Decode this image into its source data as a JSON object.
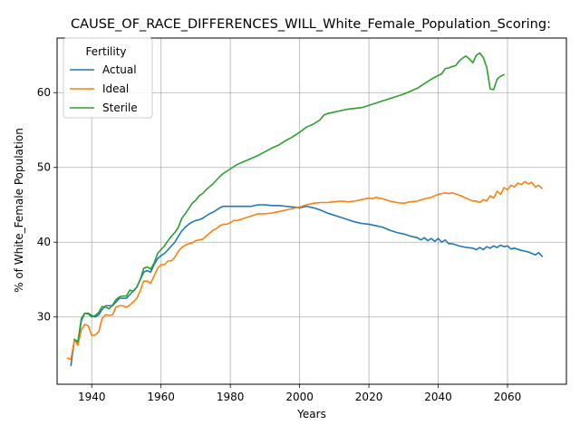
{
  "chart_data": {
    "type": "line",
    "title": "CAUSE_OF_RACE_DIFFERENCES_WILL_White_Female_Population_Scoring:",
    "xlabel": "Years",
    "ylabel": "% of White_Female Population",
    "xlim": [
      1930,
      2077
    ],
    "ylim": [
      21.0,
      67.3
    ],
    "xticks": [
      1940,
      1960,
      1980,
      2000,
      2020,
      2040,
      2060
    ],
    "yticks": [
      30,
      40,
      50,
      60
    ],
    "grid": true,
    "legend": {
      "title": "Fertility",
      "placement": "top-left",
      "entries": [
        "Actual",
        "Ideal",
        "Sterile"
      ]
    },
    "series": [
      {
        "name": "Actual",
        "color": "#1f77b4",
        "points": [
          [
            1934,
            23.5
          ],
          [
            1935,
            27.0
          ],
          [
            1936,
            26.5
          ],
          [
            1937,
            29.5
          ],
          [
            1938,
            30.5
          ],
          [
            1939,
            30.5
          ],
          [
            1940,
            30.2
          ],
          [
            1941,
            30.0
          ],
          [
            1942,
            30.3
          ],
          [
            1943,
            31.0
          ],
          [
            1944,
            31.5
          ],
          [
            1945,
            31.5
          ],
          [
            1946,
            31.5
          ],
          [
            1947,
            32.0
          ],
          [
            1948,
            32.5
          ],
          [
            1949,
            32.5
          ],
          [
            1950,
            32.5
          ],
          [
            1951,
            33.0
          ],
          [
            1952,
            33.5
          ],
          [
            1953,
            34.0
          ],
          [
            1954,
            35.0
          ],
          [
            1955,
            36.0
          ],
          [
            1956,
            36.2
          ],
          [
            1957,
            36.0
          ],
          [
            1958,
            37.0
          ],
          [
            1959,
            37.8
          ],
          [
            1960,
            38.2
          ],
          [
            1961,
            38.5
          ],
          [
            1962,
            39.0
          ],
          [
            1963,
            39.5
          ],
          [
            1964,
            40.0
          ],
          [
            1965,
            40.8
          ],
          [
            1966,
            41.5
          ],
          [
            1967,
            42.0
          ],
          [
            1968,
            42.4
          ],
          [
            1969,
            42.7
          ],
          [
            1970,
            42.9
          ],
          [
            1971,
            43.0
          ],
          [
            1972,
            43.2
          ],
          [
            1973,
            43.5
          ],
          [
            1974,
            43.8
          ],
          [
            1975,
            44.0
          ],
          [
            1976,
            44.3
          ],
          [
            1977,
            44.6
          ],
          [
            1978,
            44.8
          ],
          [
            1979,
            44.8
          ],
          [
            1980,
            44.8
          ],
          [
            1982,
            44.8
          ],
          [
            1984,
            44.8
          ],
          [
            1986,
            44.8
          ],
          [
            1988,
            45.0
          ],
          [
            1990,
            45.0
          ],
          [
            1992,
            44.9
          ],
          [
            1994,
            44.9
          ],
          [
            1996,
            44.8
          ],
          [
            1998,
            44.7
          ],
          [
            2000,
            44.6
          ],
          [
            2002,
            44.8
          ],
          [
            2004,
            44.6
          ],
          [
            2006,
            44.3
          ],
          [
            2008,
            43.9
          ],
          [
            2010,
            43.6
          ],
          [
            2012,
            43.3
          ],
          [
            2014,
            43.0
          ],
          [
            2016,
            42.7
          ],
          [
            2018,
            42.5
          ],
          [
            2020,
            42.4
          ],
          [
            2022,
            42.2
          ],
          [
            2024,
            42.0
          ],
          [
            2026,
            41.6
          ],
          [
            2028,
            41.3
          ],
          [
            2030,
            41.1
          ],
          [
            2032,
            40.8
          ],
          [
            2034,
            40.6
          ],
          [
            2035,
            40.3
          ],
          [
            2036,
            40.6
          ],
          [
            2037,
            40.2
          ],
          [
            2038,
            40.5
          ],
          [
            2039,
            40.1
          ],
          [
            2040,
            40.5
          ],
          [
            2041,
            40.0
          ],
          [
            2042,
            40.3
          ],
          [
            2043,
            39.8
          ],
          [
            2044,
            39.8
          ],
          [
            2046,
            39.5
          ],
          [
            2048,
            39.3
          ],
          [
            2050,
            39.2
          ],
          [
            2051,
            39.0
          ],
          [
            2052,
            39.3
          ],
          [
            2053,
            39.0
          ],
          [
            2054,
            39.4
          ],
          [
            2055,
            39.2
          ],
          [
            2056,
            39.5
          ],
          [
            2057,
            39.3
          ],
          [
            2058,
            39.6
          ],
          [
            2059,
            39.4
          ],
          [
            2060,
            39.5
          ],
          [
            2061,
            39.1
          ],
          [
            2062,
            39.2
          ],
          [
            2064,
            38.9
          ],
          [
            2066,
            38.7
          ],
          [
            2067,
            38.5
          ],
          [
            2068,
            38.3
          ],
          [
            2069,
            38.6
          ],
          [
            2070,
            38.1
          ]
        ]
      },
      {
        "name": "Ideal",
        "color": "#ff7f0e",
        "points": [
          [
            1933,
            24.5
          ],
          [
            1934,
            24.3
          ],
          [
            1935,
            27.0
          ],
          [
            1936,
            26.2
          ],
          [
            1937,
            28.3
          ],
          [
            1938,
            29.0
          ],
          [
            1939,
            28.8
          ],
          [
            1940,
            27.5
          ],
          [
            1941,
            27.6
          ],
          [
            1942,
            28.0
          ],
          [
            1943,
            29.8
          ],
          [
            1944,
            30.3
          ],
          [
            1945,
            30.2
          ],
          [
            1946,
            30.3
          ],
          [
            1947,
            31.3
          ],
          [
            1948,
            31.5
          ],
          [
            1949,
            31.5
          ],
          [
            1950,
            31.3
          ],
          [
            1951,
            31.6
          ],
          [
            1952,
            32.0
          ],
          [
            1953,
            32.5
          ],
          [
            1954,
            33.5
          ],
          [
            1955,
            34.8
          ],
          [
            1956,
            34.8
          ],
          [
            1957,
            34.5
          ],
          [
            1958,
            35.5
          ],
          [
            1959,
            36.5
          ],
          [
            1960,
            37.0
          ],
          [
            1961,
            37.0
          ],
          [
            1962,
            37.5
          ],
          [
            1963,
            37.5
          ],
          [
            1964,
            38.0
          ],
          [
            1965,
            38.8
          ],
          [
            1966,
            39.3
          ],
          [
            1967,
            39.6
          ],
          [
            1968,
            39.8
          ],
          [
            1969,
            39.9
          ],
          [
            1970,
            40.2
          ],
          [
            1971,
            40.3
          ],
          [
            1972,
            40.4
          ],
          [
            1973,
            40.8
          ],
          [
            1974,
            41.2
          ],
          [
            1975,
            41.6
          ],
          [
            1976,
            41.8
          ],
          [
            1977,
            42.2
          ],
          [
            1978,
            42.4
          ],
          [
            1979,
            42.4
          ],
          [
            1980,
            42.6
          ],
          [
            1981,
            42.9
          ],
          [
            1982,
            42.9
          ],
          [
            1984,
            43.2
          ],
          [
            1986,
            43.5
          ],
          [
            1988,
            43.8
          ],
          [
            1990,
            43.8
          ],
          [
            1992,
            43.9
          ],
          [
            1994,
            44.1
          ],
          [
            1996,
            44.3
          ],
          [
            1998,
            44.5
          ],
          [
            2000,
            44.7
          ],
          [
            2002,
            45.0
          ],
          [
            2004,
            45.2
          ],
          [
            2006,
            45.3
          ],
          [
            2008,
            45.3
          ],
          [
            2010,
            45.4
          ],
          [
            2012,
            45.5
          ],
          [
            2014,
            45.4
          ],
          [
            2016,
            45.5
          ],
          [
            2018,
            45.7
          ],
          [
            2020,
            45.9
          ],
          [
            2021,
            45.8
          ],
          [
            2022,
            46.0
          ],
          [
            2024,
            45.8
          ],
          [
            2026,
            45.5
          ],
          [
            2028,
            45.3
          ],
          [
            2030,
            45.2
          ],
          [
            2032,
            45.4
          ],
          [
            2034,
            45.5
          ],
          [
            2036,
            45.8
          ],
          [
            2038,
            46.0
          ],
          [
            2040,
            46.4
          ],
          [
            2041,
            46.5
          ],
          [
            2042,
            46.6
          ],
          [
            2043,
            46.5
          ],
          [
            2044,
            46.6
          ],
          [
            2046,
            46.3
          ],
          [
            2048,
            45.9
          ],
          [
            2050,
            45.5
          ],
          [
            2051,
            45.5
          ],
          [
            2052,
            45.3
          ],
          [
            2053,
            45.7
          ],
          [
            2054,
            45.5
          ],
          [
            2055,
            46.2
          ],
          [
            2056,
            45.9
          ],
          [
            2057,
            46.8
          ],
          [
            2058,
            46.4
          ],
          [
            2059,
            47.3
          ],
          [
            2060,
            47.0
          ],
          [
            2061,
            47.6
          ],
          [
            2062,
            47.4
          ],
          [
            2063,
            47.9
          ],
          [
            2064,
            47.7
          ],
          [
            2065,
            48.1
          ],
          [
            2066,
            47.8
          ],
          [
            2067,
            48.0
          ],
          [
            2068,
            47.4
          ],
          [
            2069,
            47.6
          ],
          [
            2070,
            47.2
          ]
        ]
      },
      {
        "name": "Sterile",
        "color": "#2ca02c",
        "points": [
          [
            1935,
            27.0
          ],
          [
            1936,
            26.7
          ],
          [
            1937,
            29.8
          ],
          [
            1938,
            30.5
          ],
          [
            1939,
            30.4
          ],
          [
            1940,
            30.0
          ],
          [
            1941,
            30.2
          ],
          [
            1942,
            30.6
          ],
          [
            1943,
            31.4
          ],
          [
            1944,
            31.3
          ],
          [
            1945,
            31.1
          ],
          [
            1946,
            31.6
          ],
          [
            1947,
            32.3
          ],
          [
            1948,
            32.7
          ],
          [
            1949,
            32.8
          ],
          [
            1950,
            32.8
          ],
          [
            1951,
            33.6
          ],
          [
            1952,
            33.4
          ],
          [
            1953,
            34.0
          ],
          [
            1954,
            35.0
          ],
          [
            1955,
            36.5
          ],
          [
            1956,
            36.7
          ],
          [
            1957,
            36.4
          ],
          [
            1958,
            37.2
          ],
          [
            1959,
            38.5
          ],
          [
            1960,
            39.0
          ],
          [
            1961,
            39.5
          ],
          [
            1962,
            40.2
          ],
          [
            1963,
            40.8
          ],
          [
            1964,
            41.3
          ],
          [
            1965,
            42.0
          ],
          [
            1966,
            43.2
          ],
          [
            1967,
            43.8
          ],
          [
            1968,
            44.5
          ],
          [
            1969,
            45.2
          ],
          [
            1970,
            45.6
          ],
          [
            1971,
            46.2
          ],
          [
            1972,
            46.5
          ],
          [
            1973,
            47.0
          ],
          [
            1974,
            47.4
          ],
          [
            1975,
            47.8
          ],
          [
            1976,
            48.3
          ],
          [
            1977,
            48.8
          ],
          [
            1978,
            49.2
          ],
          [
            1979,
            49.5
          ],
          [
            1980,
            49.8
          ],
          [
            1982,
            50.4
          ],
          [
            1984,
            50.8
          ],
          [
            1986,
            51.2
          ],
          [
            1988,
            51.6
          ],
          [
            1990,
            52.1
          ],
          [
            1992,
            52.6
          ],
          [
            1994,
            53.0
          ],
          [
            1996,
            53.6
          ],
          [
            1998,
            54.1
          ],
          [
            2000,
            54.7
          ],
          [
            2002,
            55.4
          ],
          [
            2004,
            55.8
          ],
          [
            2006,
            56.4
          ],
          [
            2007,
            57.0
          ],
          [
            2008,
            57.2
          ],
          [
            2010,
            57.4
          ],
          [
            2012,
            57.6
          ],
          [
            2014,
            57.8
          ],
          [
            2016,
            57.9
          ],
          [
            2018,
            58.0
          ],
          [
            2020,
            58.3
          ],
          [
            2022,
            58.6
          ],
          [
            2024,
            58.9
          ],
          [
            2026,
            59.2
          ],
          [
            2028,
            59.5
          ],
          [
            2030,
            59.8
          ],
          [
            2032,
            60.2
          ],
          [
            2034,
            60.6
          ],
          [
            2036,
            61.2
          ],
          [
            2038,
            61.8
          ],
          [
            2040,
            62.3
          ],
          [
            2041,
            62.5
          ],
          [
            2042,
            63.2
          ],
          [
            2043,
            63.3
          ],
          [
            2044,
            63.5
          ],
          [
            2045,
            63.6
          ],
          [
            2046,
            64.2
          ],
          [
            2047,
            64.6
          ],
          [
            2048,
            64.9
          ],
          [
            2049,
            64.5
          ],
          [
            2050,
            64.0
          ],
          [
            2051,
            65.0
          ],
          [
            2052,
            65.3
          ],
          [
            2053,
            64.7
          ],
          [
            2054,
            63.4
          ],
          [
            2055,
            60.5
          ],
          [
            2056,
            60.4
          ],
          [
            2057,
            61.8
          ],
          [
            2058,
            62.2
          ],
          [
            2059,
            62.4
          ]
        ]
      }
    ]
  }
}
